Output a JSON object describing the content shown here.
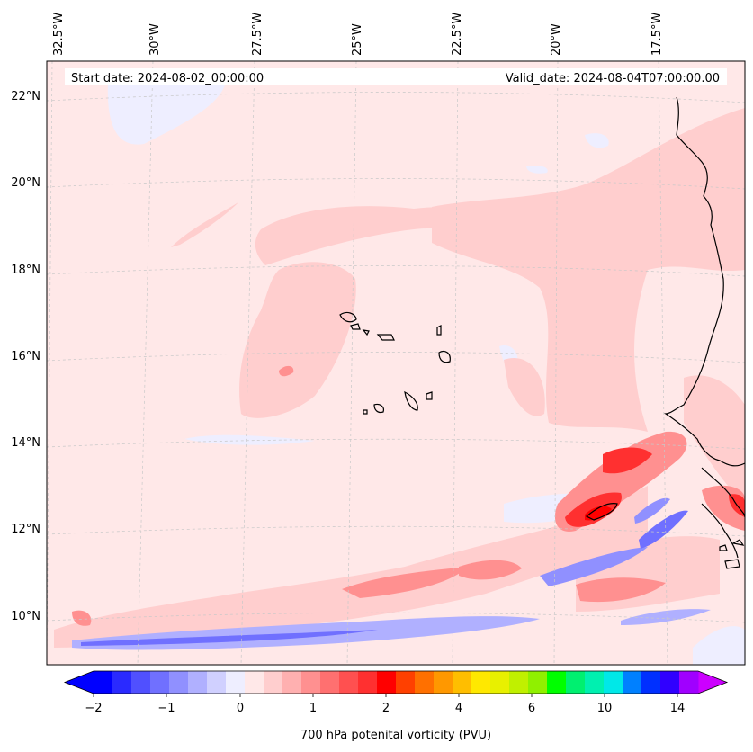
{
  "header": {
    "start_date": "Start date: 2024-08-02_00:00:00",
    "valid_date": "Valid_date: 2024-08-04T07:00:00.00"
  },
  "lon_labels": [
    "32.5°W",
    "30°W",
    "27.5°W",
    "25°W",
    "22.5°W",
    "20°W",
    "17.5°W"
  ],
  "lat_labels": [
    "22°N",
    "20°N",
    "18°N",
    "16°N",
    "14°N",
    "12°N",
    "10°N"
  ],
  "colorbar": {
    "label": "700 hPa potenital vorticity (PVU)",
    "tick_labels": [
      "−2",
      "−1",
      "0",
      "1",
      "2",
      "4",
      "6",
      "10",
      "14"
    ],
    "colors": [
      "#0000ff",
      "#2a2aff",
      "#5050ff",
      "#7070ff",
      "#9090ff",
      "#b0b0ff",
      "#d0d0ff",
      "#eeeeff",
      "#ffe8e8",
      "#ffcece",
      "#ffb0b0",
      "#ff9090",
      "#ff7070",
      "#ff5050",
      "#ff3030",
      "#ff0000",
      "#ff4000",
      "#ff7000",
      "#ff9800",
      "#ffbe00",
      "#ffe800",
      "#e8f000",
      "#c0f000",
      "#90f000",
      "#00ff00",
      "#00f070",
      "#00f0b0",
      "#00e8e8",
      "#0080ff",
      "#0030ff",
      "#3000ff",
      "#a000ff"
    ],
    "extend_min_color": "#0000ff",
    "extend_max_color": "#cc00ff"
  },
  "colors": {
    "background_pv": "#ffe8e8",
    "coast": "#000000",
    "grid": "#cccccc"
  }
}
